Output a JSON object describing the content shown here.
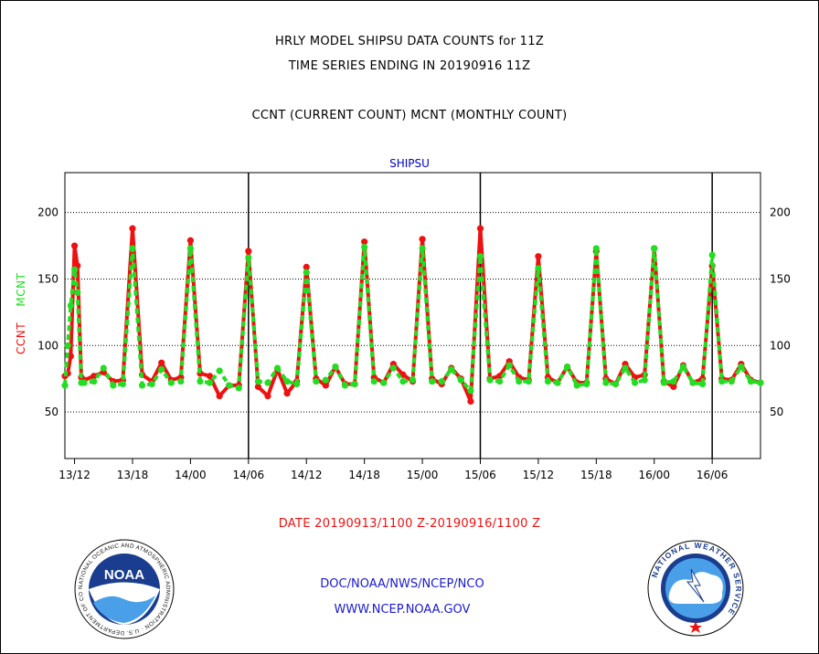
{
  "header": {
    "title": "HRLY MODEL SHIPSU DATA COUNTS for 11Z",
    "subtitle": "TIME SERIES ENDING IN 20190916 11Z",
    "legend_line": "CCNT (CURRENT COUNT) MCNT (MONTHLY COUNT)"
  },
  "footer": {
    "date_range": "DATE 20190913/1100 Z-20190916/1100 Z",
    "org": "DOC/NOAA/NWS/NCEP/NCO",
    "url": "WWW.NCEP.NOAA.GOV"
  },
  "logos": {
    "noaa_text": "NOAA",
    "noaa_ring": "NATIONAL OCEANIC AND ATMOSPHERIC ADMINISTRATION · U.S. DEPARTMENT OF COMMERCE",
    "nws_ring": "NATIONAL WEATHER SERVICE"
  },
  "chart_data": {
    "type": "line",
    "title": "SHIPSU",
    "ylabel_parts": [
      "CCNT",
      "MCNT"
    ],
    "x_unit": "hours from 2019-09-13 11Z",
    "xlim": [
      0,
      72
    ],
    "ylim": [
      15,
      230
    ],
    "yticks": [
      50,
      100,
      150,
      200
    ],
    "grid": true,
    "x_ticks": [
      {
        "label": "13/12",
        "hour": 1
      },
      {
        "label": "13/18",
        "hour": 7
      },
      {
        "label": "14/00",
        "hour": 13
      },
      {
        "label": "14/06",
        "hour": 19
      },
      {
        "label": "14/12",
        "hour": 25
      },
      {
        "label": "14/18",
        "hour": 31
      },
      {
        "label": "15/00",
        "hour": 37
      },
      {
        "label": "15/06",
        "hour": 43
      },
      {
        "label": "15/12",
        "hour": 49
      },
      {
        "label": "15/18",
        "hour": 55
      },
      {
        "label": "16/00",
        "hour": 61
      },
      {
        "label": "16/06",
        "hour": 67
      }
    ],
    "day_boundaries": [
      19,
      43,
      67
    ],
    "series": [
      {
        "name": "CCNT",
        "color": "#ee1111",
        "values": [
          [
            0,
            77
          ],
          [
            0.3,
            79
          ],
          [
            0.6,
            92
          ],
          [
            1,
            175
          ],
          [
            1.3,
            160
          ],
          [
            1.7,
            76
          ],
          [
            2,
            74
          ],
          [
            3,
            77
          ],
          [
            4,
            80
          ],
          [
            5,
            73
          ],
          [
            6,
            74
          ],
          [
            7,
            188
          ],
          [
            8,
            78
          ],
          [
            9,
            73
          ],
          [
            10,
            87
          ],
          [
            11,
            74
          ],
          [
            12,
            76
          ],
          [
            13,
            179
          ],
          [
            14,
            79
          ],
          [
            15,
            77
          ],
          [
            16,
            62
          ],
          [
            17,
            70
          ],
          [
            18,
            70
          ],
          [
            19,
            171
          ],
          [
            20,
            69
          ],
          [
            21,
            62
          ],
          [
            22,
            82
          ],
          [
            23,
            64
          ],
          [
            24,
            73
          ],
          [
            25,
            159
          ],
          [
            26,
            75
          ],
          [
            27,
            70
          ],
          [
            28,
            84
          ],
          [
            29,
            71
          ],
          [
            30,
            71
          ],
          [
            31,
            178
          ],
          [
            32,
            76
          ],
          [
            33,
            72
          ],
          [
            34,
            86
          ],
          [
            35,
            78
          ],
          [
            36,
            73
          ],
          [
            37,
            180
          ],
          [
            38,
            75
          ],
          [
            39,
            71
          ],
          [
            40,
            83
          ],
          [
            41,
            75
          ],
          [
            42,
            58
          ],
          [
            43,
            188
          ],
          [
            44,
            75
          ],
          [
            45,
            77
          ],
          [
            46,
            88
          ],
          [
            47,
            76
          ],
          [
            48,
            74
          ],
          [
            49,
            167
          ],
          [
            50,
            76
          ],
          [
            51,
            72
          ],
          [
            52,
            84
          ],
          [
            53,
            72
          ],
          [
            54,
            72
          ],
          [
            55,
            171
          ],
          [
            56,
            75
          ],
          [
            57,
            71
          ],
          [
            58,
            86
          ],
          [
            59,
            76
          ],
          [
            60,
            78
          ],
          [
            61,
            173
          ],
          [
            62,
            73
          ],
          [
            63,
            69
          ],
          [
            64,
            85
          ],
          [
            65,
            72
          ],
          [
            66,
            75
          ],
          [
            67,
            160
          ],
          [
            68,
            75
          ],
          [
            69,
            74
          ],
          [
            70,
            86
          ],
          [
            71,
            74
          ],
          [
            72,
            72
          ]
        ]
      },
      {
        "name": "MCNT",
        "color": "#22dd22",
        "values": [
          [
            0,
            70
          ],
          [
            0.3,
            100
          ],
          [
            0.6,
            130
          ],
          [
            1,
            157
          ],
          [
            1.3,
            140
          ],
          [
            1.7,
            72
          ],
          [
            2,
            72
          ],
          [
            3,
            73
          ],
          [
            4,
            83
          ],
          [
            5,
            70
          ],
          [
            6,
            71
          ],
          [
            7,
            173
          ],
          [
            8,
            70
          ],
          [
            9,
            71
          ],
          [
            10,
            82
          ],
          [
            11,
            72
          ],
          [
            12,
            73
          ],
          [
            13,
            173
          ],
          [
            14,
            73
          ],
          [
            15,
            72
          ],
          [
            16,
            81
          ],
          [
            17,
            70
          ],
          [
            18,
            68
          ],
          [
            19,
            166
          ],
          [
            20,
            73
          ],
          [
            21,
            72
          ],
          [
            22,
            83
          ],
          [
            23,
            73
          ],
          [
            24,
            71
          ],
          [
            25,
            155
          ],
          [
            26,
            73
          ],
          [
            27,
            74
          ],
          [
            28,
            84
          ],
          [
            29,
            70
          ],
          [
            30,
            71
          ],
          [
            31,
            174
          ],
          [
            32,
            73
          ],
          [
            33,
            72
          ],
          [
            34,
            83
          ],
          [
            35,
            73
          ],
          [
            36,
            74
          ],
          [
            37,
            173
          ],
          [
            38,
            73
          ],
          [
            39,
            73
          ],
          [
            40,
            82
          ],
          [
            41,
            74
          ],
          [
            42,
            66
          ],
          [
            43,
            167
          ],
          [
            44,
            74
          ],
          [
            45,
            73
          ],
          [
            46,
            85
          ],
          [
            47,
            73
          ],
          [
            48,
            73
          ],
          [
            49,
            158
          ],
          [
            50,
            73
          ],
          [
            51,
            72
          ],
          [
            52,
            84
          ],
          [
            53,
            70
          ],
          [
            54,
            71
          ],
          [
            55,
            173
          ],
          [
            56,
            72
          ],
          [
            57,
            71
          ],
          [
            58,
            83
          ],
          [
            59,
            72
          ],
          [
            60,
            74
          ],
          [
            61,
            173
          ],
          [
            62,
            72
          ],
          [
            63,
            73
          ],
          [
            64,
            84
          ],
          [
            65,
            72
          ],
          [
            66,
            71
          ],
          [
            67,
            168
          ],
          [
            68,
            73
          ],
          [
            69,
            73
          ],
          [
            70,
            84
          ],
          [
            71,
            73
          ],
          [
            72,
            72
          ]
        ]
      }
    ]
  }
}
